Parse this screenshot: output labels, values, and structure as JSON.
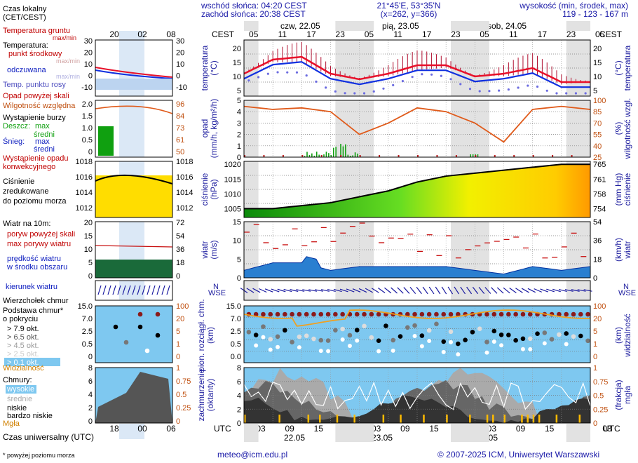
{
  "header": {
    "sunrise": "wschód słońca: 04:20 CEST",
    "sunset": "zachód słońca: 20:38 CEST",
    "coords": "21°45'E, 53°35'N",
    "grid": "(x=262, y=366)",
    "height_label": "wysokość (min, środek, max)",
    "heights": "119 - 123 - 167 m",
    "tz_left": "CEST",
    "tz_right": "CEST",
    "days_top": [
      "czw, 22.05",
      "pią, 23.05",
      "sob, 24.05"
    ],
    "hours_top": [
      "05",
      "11",
      "17",
      "23",
      "05",
      "11",
      "17",
      "23",
      "05",
      "11",
      "17",
      "23",
      "05"
    ]
  },
  "footer": {
    "utc": "UTC",
    "hours_bottom": [
      "03",
      "09",
      "15",
      "21",
      "03",
      "09",
      "15",
      "21",
      "03",
      "09",
      "15",
      "21",
      "03"
    ],
    "dates_bottom": [
      "22.05",
      "23.05",
      "24.05"
    ],
    "email": "meteo@icm.edu.pl",
    "copyright": "© 2007-2025 ICM, Uniwersytet Warszawski",
    "footnote": "* powyżej poziomu morza",
    "universal_time": "Czas uniwersalny (UTC)"
  },
  "legend": {
    "local_time": "Czas lokalny\n(CET/CEST)",
    "local_ticks": [
      "20",
      "02",
      "08"
    ],
    "utc_ticks": [
      "18",
      "00",
      "06"
    ],
    "temp": {
      "ground": "Temperatura gruntu",
      "ground_sub": "max/min",
      "temperature": "Temperatura:",
      "mid": "punkt środkowy",
      "mid_sub": "max/min",
      "felt": "odczuwana",
      "felt_sub": "max/min",
      "dew": "Temp. punktu rosy",
      "ticks": [
        "30",
        "20",
        "10",
        "0",
        "-10"
      ]
    },
    "precip": {
      "above_scale": "Opad powyżej skali",
      "humidity": "Wilgotność względna",
      "storm": "Wystąpienie burzy",
      "rain": "Deszcz:",
      "rain_max": "max",
      "rain_mean": "średni",
      "snow": "Śnieg:",
      "snow_max": "max",
      "snow_mean": "średni",
      "occurrence": "Wystąpienie opadu\nkonwekcyjnego",
      "ticks_left": [
        "2.0",
        "1.5",
        "1.0",
        "0.5",
        "0"
      ],
      "ticks_right": [
        "96",
        "84",
        "73",
        "61",
        "50"
      ]
    },
    "pressure": {
      "label": "Ciśnienie\nzredukowane\ndo poziomu morza",
      "ticks": [
        "1018",
        "1016",
        "1014",
        "1012"
      ]
    },
    "wind": {
      "label": "Wiatr na 10m:",
      "gust_above": "poryw powyżej skali",
      "gust_max": "max porywy wiatru",
      "speed": "prędkość wiatru\nw środku obszaru",
      "ticks_left": [
        "20",
        "15",
        "10",
        "5",
        "0"
      ],
      "ticks_right": [
        "72",
        "54",
        "36",
        "18",
        "0"
      ]
    },
    "direction": {
      "label": "kierunek wiatru"
    },
    "cloudbase": {
      "tail": "Wierzchołek chmur",
      "base": "Podstawa chmur*\no pokryciu",
      "okt": [
        "> 7.9 okt.",
        "> 6.5 okt.",
        "> 4.5 okt.",
        "> 2.5 okt.",
        "> 0.1 okt."
      ],
      "visibility": "Widzialność",
      "ticks_left": [
        "15.0",
        "7.0",
        "2.5",
        "0.5",
        "0"
      ],
      "ticks_right": [
        "100",
        "20",
        "5",
        "1",
        "0"
      ]
    },
    "clouds": {
      "label": "Chmury:",
      "high": "wysokie",
      "mid": "średnie",
      "low": "niskie",
      "very_low": "bardzo niskie",
      "fog": "Mgła",
      "ticks_left": [
        "8",
        "6",
        "4",
        "2",
        "0"
      ],
      "ticks_right": [
        "1",
        "0.75",
        "0.5",
        "0.25",
        "0"
      ]
    }
  },
  "panels": {
    "temperature": {
      "left_label": "temperatura\n(°C)",
      "right_label": "(°C)\ntemperatura",
      "ticks": [
        "20",
        "15",
        "10",
        "5"
      ]
    },
    "precip": {
      "left_label": "opad\n(mm/h, kg/m²/h)",
      "right_label": "(%)\nwilgotność wzgl.",
      "ticks_left": [
        "5",
        "4",
        "3",
        "2",
        "1",
        "0"
      ],
      "ticks_right": [
        "100",
        "85",
        "70",
        "55",
        "40",
        "25"
      ]
    },
    "pressure": {
      "left_label": "ciśnienie\n(hPa)",
      "right_label": "(mm Hg)\nciśnienie",
      "ticks_left": [
        "1020",
        "1015",
        "1010",
        "1005"
      ],
      "ticks_right": [
        "765",
        "761",
        "758",
        "754"
      ]
    },
    "wind": {
      "left_label": "wiatr\n(m/s)",
      "right_label": "(km/h)\nwiatr",
      "ticks_left": [
        "15",
        "10",
        "5",
        "0"
      ],
      "ticks_right": [
        "54",
        "36",
        "18",
        "0"
      ]
    },
    "direction": {
      "compass": "N\nWSE"
    },
    "cloudbase": {
      "left_label": "pion. rozciągł. chm.\n(km)",
      "right_label": "(km)\nwidzialność",
      "ticks_left": [
        "15.0",
        "7.0",
        "2.5",
        "0.5",
        "0.0"
      ],
      "ticks_right": [
        "100",
        "20",
        "5",
        "1",
        "0"
      ]
    },
    "clouds": {
      "left_label": "zachmurzenie\n(oktanty)",
      "right_label": "(frakcja)\nmgła",
      "ticks_left": [
        "8",
        "6",
        "4",
        "2",
        "0"
      ],
      "ticks_right": [
        "1",
        "0.75",
        "0.5",
        "0.25",
        "0"
      ]
    }
  },
  "colors": {
    "temp": "#e8102a",
    "felt": "#1030e0",
    "dew": "#6c6ce0",
    "humidity": "#e05a1a",
    "rain": "#10a010",
    "pressure_low": "#10b010",
    "pressure_high": "#ffdd00",
    "wind": "#0050c0",
    "gust": "#c81010",
    "sky": "#7ec8f0",
    "cloud": "#404040",
    "visibility": "#f0a020"
  },
  "chart_data": {
    "type": "line",
    "x": [
      "22.05 05",
      "22.05 11",
      "22.05 17",
      "22.05 23",
      "23.05 05",
      "23.05 11",
      "23.05 17",
      "23.05 23",
      "24.05 05",
      "24.05 11",
      "24.05 17",
      "24.05 23",
      "25.05 05"
    ],
    "series": [
      {
        "name": "temperatura",
        "values": [
          11,
          16,
          17,
          11,
          9,
          11,
          14,
          14,
          10,
          11,
          13,
          8,
          8
        ]
      },
      {
        "name": "odczuwana",
        "values": [
          10,
          15,
          16,
          10,
          8,
          10,
          13,
          13,
          9,
          10,
          12,
          7,
          7
        ]
      },
      {
        "name": "wilgotność wzgl.",
        "values": [
          92,
          88,
          90,
          85,
          55,
          70,
          90,
          85,
          70,
          45,
          88,
          92,
          88
        ]
      },
      {
        "name": "ciśnienie",
        "values": [
          1005,
          1005,
          1006,
          1007,
          1009,
          1011,
          1014,
          1016,
          1017,
          1018,
          1019,
          1020,
          1020
        ]
      },
      {
        "name": "wiatr",
        "values": [
          2,
          4,
          4,
          2,
          3,
          3,
          3,
          3,
          2,
          1,
          3,
          2,
          3
        ]
      }
    ]
  }
}
